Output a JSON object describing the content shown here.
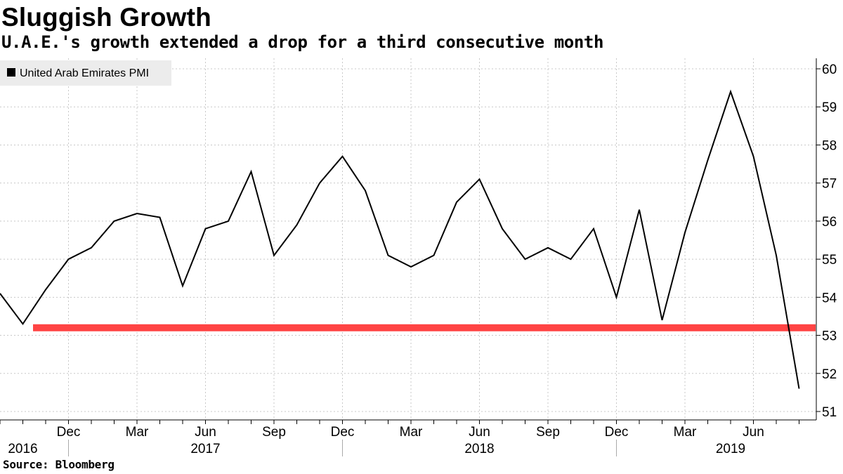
{
  "header": {
    "title": "Sluggish Growth",
    "subtitle": "U.A.E.'s growth extended a drop for a third consecutive month"
  },
  "footer": {
    "source": "Source: Bloomberg"
  },
  "chart_data": {
    "type": "line",
    "title": "Sluggish Growth",
    "subtitle": "U.A.E.'s growth extended a drop for a third consecutive month",
    "legend_position": "top-left",
    "grid": true,
    "ylim": [
      51,
      60
    ],
    "y_ticks": [
      51,
      52,
      53,
      54,
      55,
      56,
      57,
      58,
      59,
      60
    ],
    "y_axis_side": "right",
    "x_ticks_months": [
      {
        "label": "Dec",
        "date": "2016-12"
      },
      {
        "label": "Mar",
        "date": "2017-03"
      },
      {
        "label": "Jun",
        "date": "2017-06"
      },
      {
        "label": "Sep",
        "date": "2017-09"
      },
      {
        "label": "Dec",
        "date": "2017-12"
      },
      {
        "label": "Mar",
        "date": "2018-03"
      },
      {
        "label": "Jun",
        "date": "2018-06"
      },
      {
        "label": "Sep",
        "date": "2018-09"
      },
      {
        "label": "Dec",
        "date": "2018-12"
      },
      {
        "label": "Mar",
        "date": "2019-03"
      },
      {
        "label": "Jun",
        "date": "2019-06"
      }
    ],
    "x_years": [
      {
        "label": "2016",
        "date": "2016-10"
      },
      {
        "label": "2017",
        "date": "2017-06"
      },
      {
        "label": "2018",
        "date": "2018-06"
      },
      {
        "label": "2019",
        "date": "2019-05"
      }
    ],
    "series": [
      {
        "name": "United Arab Emirates PMI",
        "color": "#000000",
        "points": [
          {
            "x": "2016-09",
            "y": 54.1
          },
          {
            "x": "2016-10",
            "y": 53.3
          },
          {
            "x": "2016-11",
            "y": 54.2
          },
          {
            "x": "2016-12",
            "y": 55.0
          },
          {
            "x": "2017-01",
            "y": 55.3
          },
          {
            "x": "2017-02",
            "y": 56.0
          },
          {
            "x": "2017-03",
            "y": 56.2
          },
          {
            "x": "2017-04",
            "y": 56.1
          },
          {
            "x": "2017-05",
            "y": 54.3
          },
          {
            "x": "2017-06",
            "y": 55.8
          },
          {
            "x": "2017-07",
            "y": 56.0
          },
          {
            "x": "2017-08",
            "y": 57.3
          },
          {
            "x": "2017-09",
            "y": 55.1
          },
          {
            "x": "2017-10",
            "y": 55.9
          },
          {
            "x": "2017-11",
            "y": 57.0
          },
          {
            "x": "2017-12",
            "y": 57.7
          },
          {
            "x": "2018-01",
            "y": 56.8
          },
          {
            "x": "2018-02",
            "y": 55.1
          },
          {
            "x": "2018-03",
            "y": 54.8
          },
          {
            "x": "2018-04",
            "y": 55.1
          },
          {
            "x": "2018-05",
            "y": 56.5
          },
          {
            "x": "2018-06",
            "y": 57.1
          },
          {
            "x": "2018-07",
            "y": 55.8
          },
          {
            "x": "2018-08",
            "y": 55.0
          },
          {
            "x": "2018-09",
            "y": 55.3
          },
          {
            "x": "2018-10",
            "y": 55.0
          },
          {
            "x": "2018-11",
            "y": 55.8
          },
          {
            "x": "2018-12",
            "y": 54.0
          },
          {
            "x": "2019-01",
            "y": 56.3
          },
          {
            "x": "2019-02",
            "y": 53.4
          },
          {
            "x": "2019-03",
            "y": 55.7
          },
          {
            "x": "2019-04",
            "y": 57.6
          },
          {
            "x": "2019-05",
            "y": 59.4
          },
          {
            "x": "2019-06",
            "y": 57.7
          },
          {
            "x": "2019-07",
            "y": 55.1
          },
          {
            "x": "2019-08",
            "y": 51.6
          }
        ]
      }
    ],
    "reference_line": {
      "y": 53.2,
      "x_start": "2016-11",
      "x_end": "2019-08",
      "color": "#ff4444"
    }
  }
}
